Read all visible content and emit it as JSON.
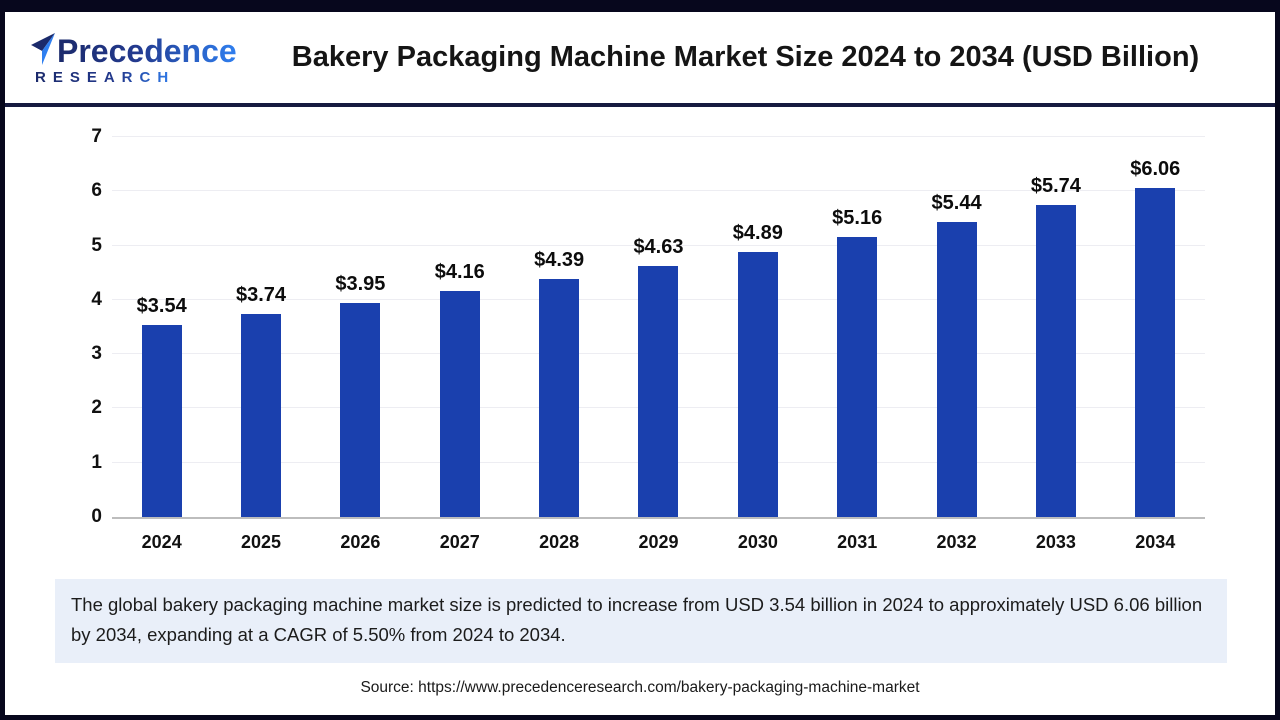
{
  "header": {
    "brand": {
      "line1": "Precedence",
      "line2": "RESEARCH"
    },
    "title": "Bakery Packaging Machine Market Size 2024 to 2034 (USD Billion)"
  },
  "chart_data": {
    "type": "bar",
    "title": "Bakery Packaging Machine Market Size 2024 to 2034 (USD Billion)",
    "categories": [
      "2024",
      "2025",
      "2026",
      "2027",
      "2028",
      "2029",
      "2030",
      "2031",
      "2032",
      "2033",
      "2034"
    ],
    "values": [
      3.54,
      3.74,
      3.95,
      4.16,
      4.39,
      4.63,
      4.89,
      5.16,
      5.44,
      5.74,
      6.06
    ],
    "bar_labels": [
      "$3.54",
      "$3.74",
      "$3.95",
      "$4.16",
      "$4.39",
      "$4.63",
      "$4.89",
      "$5.16",
      "$5.44",
      "$5.74",
      "$6.06"
    ],
    "xlabel": "",
    "ylabel": "",
    "ylim": [
      0,
      7
    ],
    "yticks": [
      0,
      1,
      2,
      3,
      4,
      5,
      6,
      7
    ],
    "grid": true,
    "legend": "none",
    "bar_color": "#1a40ae"
  },
  "colors": {
    "bar": "#1a40ae",
    "frame_border": "#07071d",
    "header_separator": "#161a40",
    "brand_navy": "#1b2a6b",
    "brand_blue": "#2f7ff0",
    "summary_background": "#e9eff9"
  },
  "summary": {
    "text": "The global bakery packaging machine market size is predicted to increase from USD 3.54 billion in 2024 to approximately USD 6.06 billion by 2034, expanding at a CAGR of 5.50% from 2024 to 2034."
  },
  "footer": {
    "source": "Source: https://www.precedenceresearch.com/bakery-packaging-machine-market"
  }
}
